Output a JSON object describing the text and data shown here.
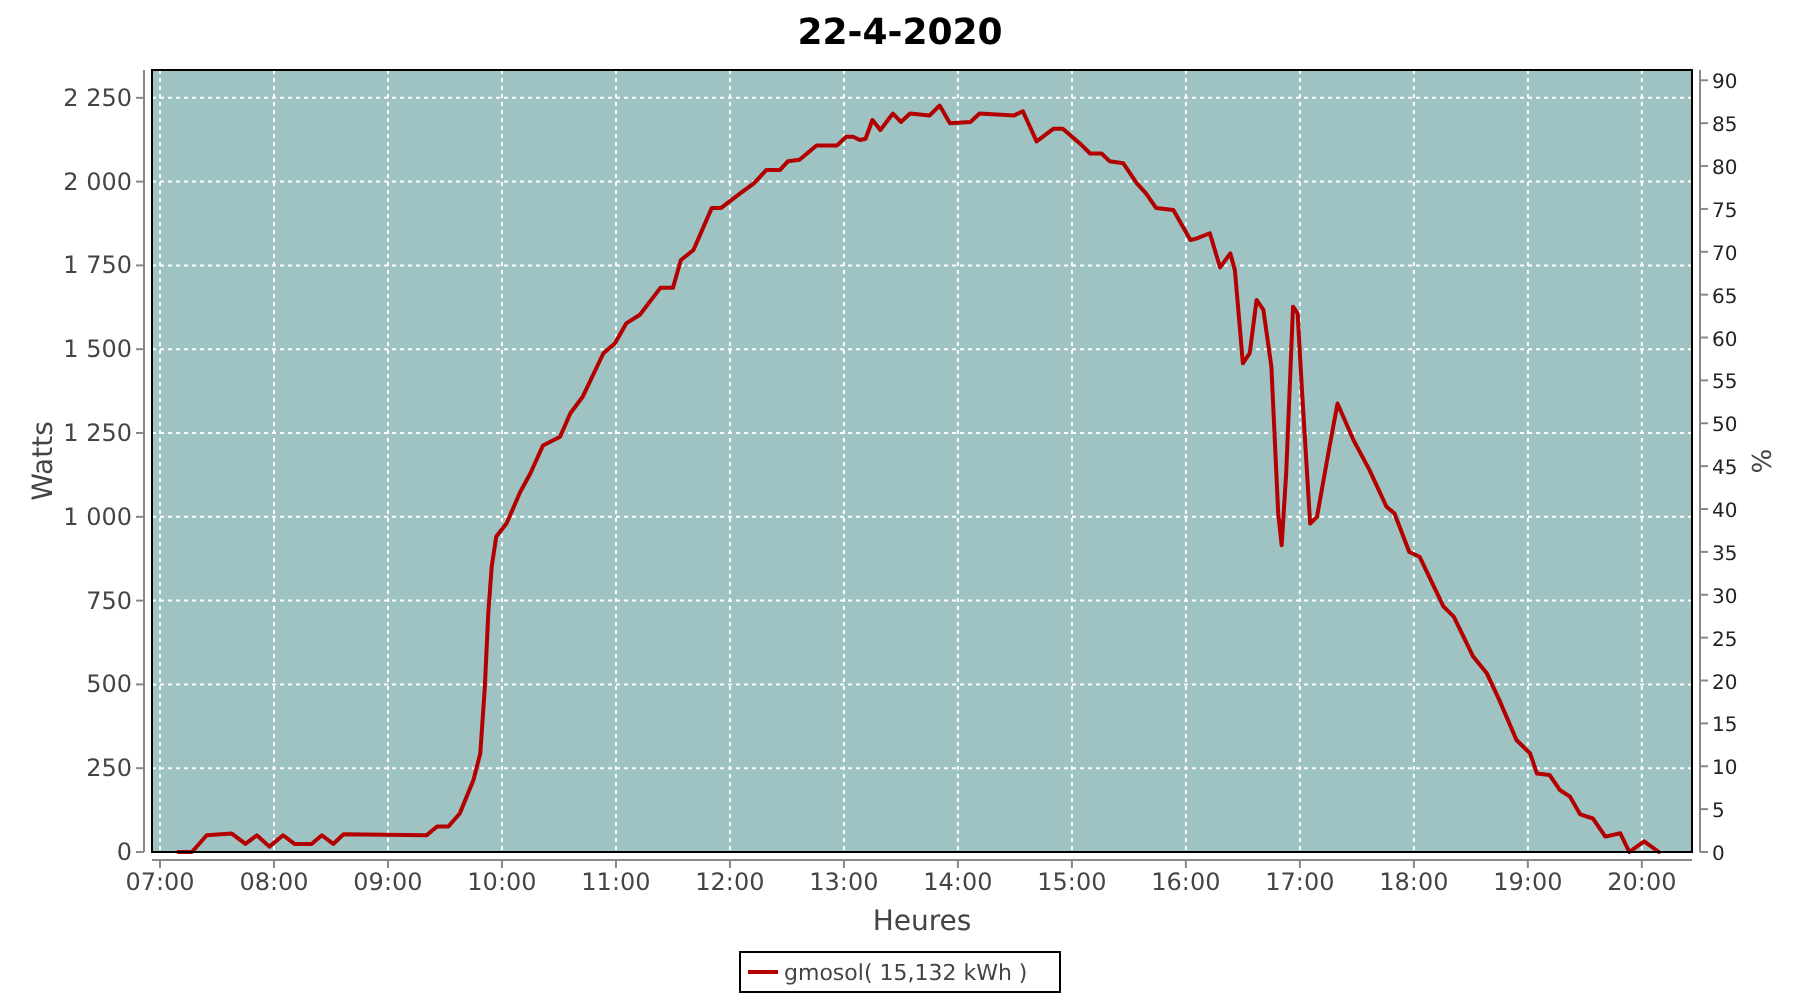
{
  "chart_data": {
    "type": "line",
    "title": "22-4-2020",
    "xlabel": "Heures",
    "ylabel": "Watts",
    "y2label": "%",
    "x": [
      7.16,
      7.28,
      7.41,
      7.63,
      7.75,
      7.85,
      7.96,
      8.08,
      8.18,
      8.33,
      8.42,
      8.52,
      8.61,
      9.34,
      9.43,
      9.53,
      9.63,
      9.75,
      9.81,
      9.85,
      9.88,
      9.91,
      9.95,
      10.04,
      10.16,
      10.25,
      10.36,
      10.51,
      10.6,
      10.71,
      10.89,
      10.99,
      11.09,
      11.21,
      11.39,
      11.5,
      11.57,
      11.68,
      11.84,
      11.92,
      12.09,
      12.21,
      12.32,
      12.44,
      12.51,
      12.61,
      12.76,
      12.94,
      13.02,
      13.08,
      13.14,
      13.19,
      13.25,
      13.32,
      13.43,
      13.5,
      13.58,
      13.75,
      13.84,
      13.93,
      14.11,
      14.19,
      14.49,
      14.57,
      14.69,
      14.84,
      14.92,
      15.07,
      15.16,
      15.26,
      15.33,
      15.45,
      15.57,
      15.65,
      15.74,
      15.89,
      16.04,
      16.09,
      16.21,
      16.3,
      16.39,
      16.43,
      16.5,
      16.56,
      16.62,
      16.68,
      16.75,
      16.81,
      16.84,
      16.88,
      16.94,
      16.98,
      17.02,
      17.09,
      17.15,
      17.26,
      17.33,
      17.47,
      17.61,
      17.76,
      17.83,
      17.96,
      18.05,
      18.26,
      18.35,
      18.52,
      18.64,
      18.75,
      18.9,
      19.02,
      19.08,
      19.19,
      19.28,
      19.37,
      19.46,
      19.57,
      19.68,
      19.81,
      19.89,
      20.02,
      20.15
    ],
    "series": [
      {
        "name": "gmosol( 15,132 kWh )",
        "color": "#b30000",
        "values": [
          0,
          0,
          50,
          55,
          24,
          50,
          16,
          50,
          24,
          24,
          50,
          24,
          53,
          50,
          76,
          76,
          115,
          215,
          294,
          493,
          712,
          851,
          941,
          980,
          1074,
          1130,
          1213,
          1239,
          1309,
          1359,
          1488,
          1517,
          1577,
          1603,
          1683,
          1683,
          1766,
          1796,
          1921,
          1921,
          1965,
          1995,
          2035,
          2035,
          2061,
          2065,
          2108,
          2108,
          2134,
          2134,
          2124,
          2128,
          2184,
          2154,
          2203,
          2178,
          2203,
          2197,
          2227,
          2174,
          2178,
          2203,
          2197,
          2210,
          2120,
          2158,
          2158,
          2114,
          2084,
          2084,
          2061,
          2055,
          1995,
          1965,
          1921,
          1915,
          1826,
          1830,
          1846,
          1744,
          1786,
          1736,
          1458,
          1488,
          1647,
          1617,
          1448,
          1010,
          915,
          1130,
          1627,
          1607,
          1368,
          980,
          1000,
          1209,
          1338,
          1229,
          1140,
          1030,
          1010,
          895,
          881,
          732,
          702,
          583,
          533,
          453,
          334,
          294,
          234,
          230,
          185,
          165,
          112,
          100,
          46,
          56,
          0,
          32,
          0
        ]
      }
    ],
    "xlim": [
      6.93,
      20.44
    ],
    "xticks": [
      {
        "value": 7,
        "label": "07:00"
      },
      {
        "value": 8,
        "label": "08:00"
      },
      {
        "value": 9,
        "label": "09:00"
      },
      {
        "value": 10,
        "label": "10:00"
      },
      {
        "value": 11,
        "label": "11:00"
      },
      {
        "value": 12,
        "label": "12:00"
      },
      {
        "value": 13,
        "label": "13:00"
      },
      {
        "value": 14,
        "label": "14:00"
      },
      {
        "value": 15,
        "label": "15:00"
      },
      {
        "value": 16,
        "label": "16:00"
      },
      {
        "value": 17,
        "label": "17:00"
      },
      {
        "value": 18,
        "label": "18:00"
      },
      {
        "value": 19,
        "label": "19:00"
      },
      {
        "value": 20,
        "label": "20:00"
      }
    ],
    "ylim": [
      0,
      2333
    ],
    "yticks": [
      0,
      250,
      500,
      750,
      {
        "value": 1000,
        "label": "1 000"
      },
      {
        "value": 1250,
        "label": "1 250"
      },
      {
        "value": 1500,
        "label": "1 500"
      },
      {
        "value": 1750,
        "label": "1 750"
      },
      {
        "value": 2000,
        "label": "2 000"
      },
      {
        "value": 2250,
        "label": "2 250"
      }
    ],
    "y2lim": [
      0,
      91.2
    ],
    "y2ticks": [
      0,
      5,
      10,
      15,
      20,
      25,
      30,
      35,
      40,
      45,
      50,
      55,
      60,
      65,
      70,
      75,
      80,
      85,
      90
    ],
    "grid": true,
    "legend": "bottom",
    "marker": "none",
    "line_style": "solid"
  }
}
